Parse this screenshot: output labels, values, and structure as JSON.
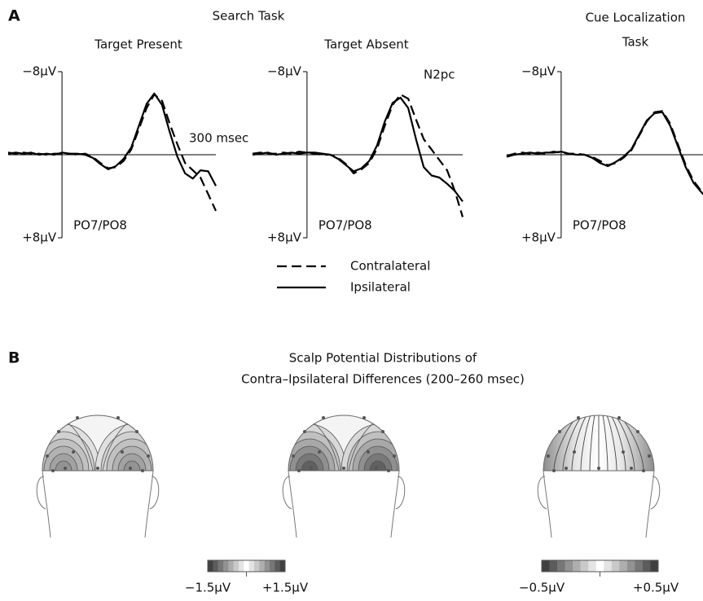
{
  "panel_a": {
    "label": "A",
    "group_title": "Search Task"
  },
  "chart_data": [
    {
      "type": "line",
      "title": [
        "Target Present"
      ],
      "electrode": "PO7/PO8",
      "annotations": [
        "300 msec"
      ],
      "x": [
        -140,
        -120,
        -100,
        -80,
        -60,
        -40,
        -20,
        0,
        20,
        40,
        60,
        80,
        100,
        120,
        140,
        160,
        180,
        200,
        220,
        240,
        260,
        280,
        300,
        320,
        340,
        360,
        380,
        400
      ],
      "xlim": [
        -140,
        400
      ],
      "ylim": [
        -8,
        8
      ],
      "y_inverted": true,
      "yticks": [
        {
          "value": -8,
          "label": "−8μV"
        },
        {
          "value": 8,
          "label": "+8μV"
        }
      ],
      "series": [
        {
          "style": "dashed",
          "color": "#000000",
          "values": [
            -0.2,
            -0.1,
            -0.2,
            -0.1,
            -0.1,
            0,
            -0.1,
            -0.1,
            -0.1,
            0,
            -0.1,
            0.2,
            0.8,
            1.3,
            1.2,
            0.6,
            -0.5,
            -2.5,
            -4.5,
            -5.8,
            -5.2,
            -3,
            -1,
            0.8,
            1.5,
            2.2,
            3.8,
            5.4
          ]
        },
        {
          "style": "solid",
          "color": "#000000",
          "values": [
            -0.1,
            -0.2,
            -0.1,
            -0.2,
            0,
            -0.1,
            0,
            -0.2,
            -0.1,
            -0.1,
            0,
            0.3,
            0.9,
            1.4,
            1.1,
            0.4,
            -0.7,
            -2.8,
            -4.9,
            -5.9,
            -4.8,
            -2.2,
            0.2,
            1.8,
            2.3,
            1.5,
            1.6,
            3.0
          ]
        }
      ]
    },
    {
      "type": "line",
      "title": [
        "Target Absent"
      ],
      "electrode": "PO7/PO8",
      "annotations": [
        "N2pc"
      ],
      "x": [
        -140,
        -120,
        -100,
        -80,
        -60,
        -40,
        -20,
        0,
        20,
        40,
        60,
        80,
        100,
        120,
        140,
        160,
        180,
        200,
        220,
        240,
        260,
        280,
        300,
        320,
        340,
        360,
        380,
        400
      ],
      "xlim": [
        -140,
        400
      ],
      "ylim": [
        -8,
        8
      ],
      "y_inverted": true,
      "yticks": [
        {
          "value": -8,
          "label": "−8μV"
        },
        {
          "value": 8,
          "label": "+8μV"
        }
      ],
      "series": [
        {
          "name": "Contralateral",
          "style": "dashed",
          "color": "#000000",
          "values": [
            -0.1,
            -0.2,
            -0.1,
            -0.1,
            -0.2,
            -0.1,
            -0.3,
            -0.2,
            -0.1,
            0,
            0,
            0.3,
            0.9,
            1.8,
            1.4,
            0.8,
            -0.6,
            -2.8,
            -4.8,
            -5.8,
            -5.4,
            -3.4,
            -1.5,
            -0.5,
            0.5,
            1.5,
            3.5,
            6.0
          ]
        },
        {
          "name": "Ipsilateral",
          "style": "solid",
          "color": "#000000",
          "values": [
            0,
            -0.1,
            -0.2,
            0,
            -0.1,
            -0.2,
            -0.1,
            -0.2,
            -0.2,
            -0.1,
            0,
            0.4,
            1.0,
            1.6,
            1.3,
            0.6,
            -0.9,
            -3.2,
            -5.0,
            -5.5,
            -4.5,
            -1.5,
            1.2,
            2.0,
            2.2,
            2.8,
            3.5,
            4.5
          ]
        }
      ]
    },
    {
      "type": "line",
      "title": [
        "Cue Localization",
        "Task"
      ],
      "electrode": "PO7/PO8",
      "annotations": [],
      "x": [
        -140,
        -120,
        -100,
        -80,
        -60,
        -40,
        -20,
        0,
        20,
        40,
        60,
        80,
        100,
        120,
        140,
        160,
        180,
        200,
        220,
        240,
        260,
        280,
        300,
        320,
        340,
        360,
        380,
        400
      ],
      "xlim": [
        -140,
        400
      ],
      "ylim": [
        -8,
        8
      ],
      "y_inverted": true,
      "yticks": [
        {
          "value": -8,
          "label": "−8μV"
        },
        {
          "value": 8,
          "label": "+8μV"
        }
      ],
      "series": [
        {
          "style": "dashed",
          "color": "#000000",
          "values": [
            0.1,
            -0.1,
            -0.2,
            -0.1,
            -0.2,
            -0.1,
            -0.3,
            -0.2,
            -0.1,
            -0.1,
            0,
            0.2,
            0.6,
            1.0,
            0.8,
            0.3,
            -0.4,
            -1.8,
            -3.2,
            -4.1,
            -4.2,
            -3.0,
            -1.0,
            1.0,
            2.5,
            3.5,
            4.5,
            4.2
          ]
        },
        {
          "style": "solid",
          "color": "#000000",
          "values": [
            0.2,
            0,
            -0.1,
            -0.2,
            -0.1,
            -0.2,
            -0.2,
            -0.3,
            -0.1,
            0,
            0,
            0.3,
            0.8,
            1.1,
            0.7,
            0.2,
            -0.5,
            -1.9,
            -3.3,
            -4.0,
            -4.1,
            -2.8,
            -0.8,
            1.2,
            2.7,
            3.6,
            4.4,
            4.1
          ]
        }
      ]
    }
  ],
  "panel_b": {
    "label": "B",
    "title": [
      "Scalp Potential Distributions of",
      "Contra–Ipsilateral Differences (200–260 msec)"
    ],
    "colorbars": [
      {
        "min_label": "−1.5μV",
        "max_label": "+1.5μV"
      },
      {
        "min_label": "−0.5μV",
        "max_label": "+0.5μV"
      }
    ]
  }
}
